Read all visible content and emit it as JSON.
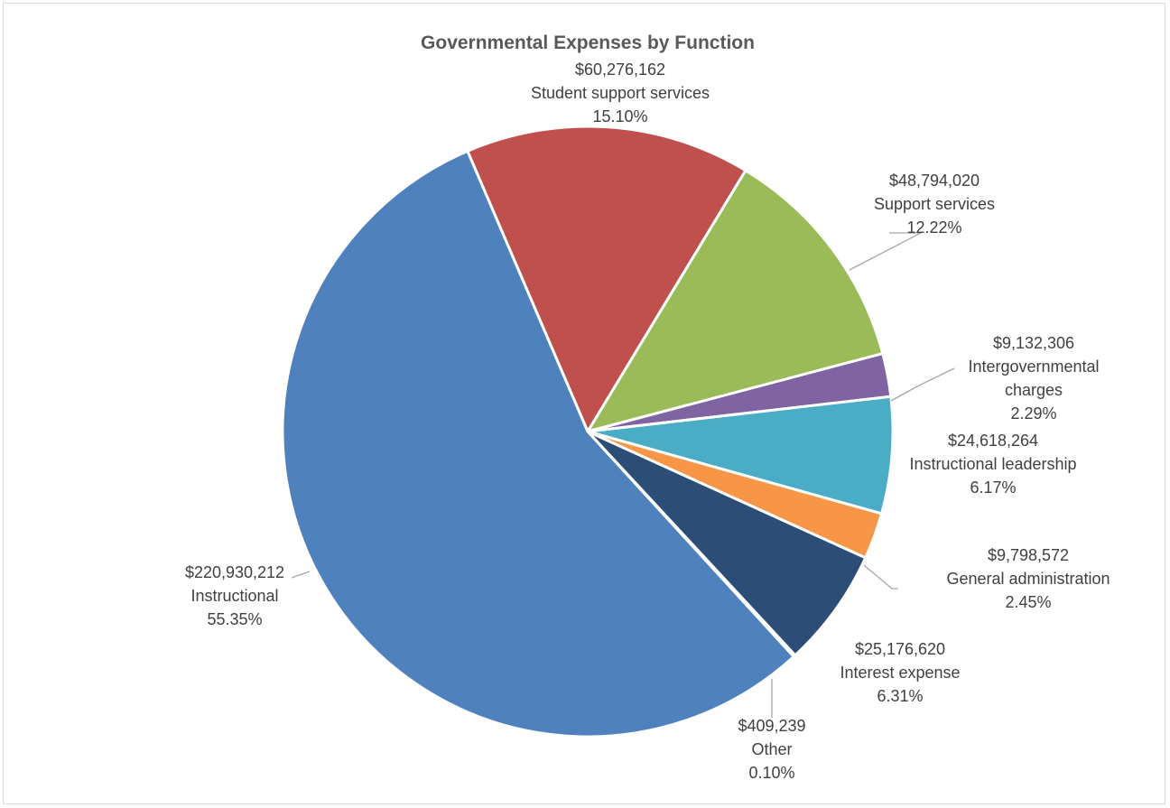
{
  "chart_data": {
    "type": "pie",
    "title": "Governmental Expenses by Function",
    "legend": "none",
    "slices": [
      {
        "name": "Student support services",
        "value": 60276162,
        "value_label": "$60,276,162",
        "percent_label": "15.10%",
        "color": "#c0504d"
      },
      {
        "name": "Support services",
        "value": 48794020,
        "value_label": "$48,794,020",
        "percent_label": "12.22%",
        "color": "#9bbb59"
      },
      {
        "name": "Intergovernmental charges",
        "value": 9132306,
        "value_label": "$9,132,306",
        "percent_label": "2.29%",
        "color": "#8064a2"
      },
      {
        "name": "Instructional leadership",
        "value": 24618264,
        "value_label": "$24,618,264",
        "percent_label": "6.17%",
        "color": "#4bacc6"
      },
      {
        "name": "General administration",
        "value": 9798572,
        "value_label": "$9,798,572",
        "percent_label": "2.45%",
        "color": "#f79646"
      },
      {
        "name": "Interest expense",
        "value": 25176620,
        "value_label": "$25,176,620",
        "percent_label": "6.31%",
        "color": "#2c4d75"
      },
      {
        "name": "Other",
        "value": 409239,
        "value_label": "$409,239",
        "percent_label": "0.10%",
        "color": "#c6d9f1"
      },
      {
        "name": "Instructional",
        "value": 220930212,
        "value_label": "$220,930,212",
        "percent_label": "55.35%",
        "color": "#4f81bd"
      }
    ]
  }
}
